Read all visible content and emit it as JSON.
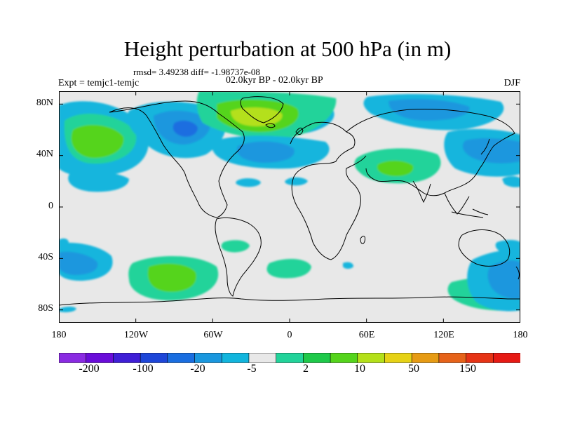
{
  "title": "Height perturbation at 500 hPa (in m)",
  "stats_line": "rmsd= 3.49238 diff= -1.98737e-08",
  "experiment_label": "Expt = temjc1-temjc",
  "period_label": "02.0kyr BP - 02.0kyr BP",
  "season_label": "DJF",
  "map": {
    "projection": "cylindrical-equidistant",
    "lon_range": [
      -180,
      180
    ],
    "lat_range": [
      -90,
      90
    ],
    "lat_tick_labels": [
      "80N",
      "40N",
      "0",
      "40S",
      "80S"
    ],
    "lat_tick_values": [
      80,
      40,
      0,
      -40,
      -80
    ],
    "lon_tick_labels": [
      "180",
      "120W",
      "60W",
      "0",
      "60E",
      "120E",
      "180"
    ],
    "lon_tick_values": [
      -180,
      -120,
      -60,
      0,
      60,
      120,
      180
    ],
    "background_color": "#e8e8e8"
  },
  "colorbar": {
    "labels": [
      "-200",
      "-100",
      "-20",
      "-5",
      "2",
      "10",
      "50",
      "150"
    ],
    "colors": [
      "#8a2be2",
      "#6a0dd9",
      "#3f1fd6",
      "#1e46d8",
      "#1a6ee0",
      "#1a97de",
      "#12b5dd",
      "#e8e8e8",
      "#22d39a",
      "#1fc94a",
      "#55d41c",
      "#b4e01a",
      "#e6d216",
      "#e69b14",
      "#e6631a",
      "#e63416",
      "#e61a14"
    ]
  },
  "contour_levels": {
    "neg_weak": "#12b5dd",
    "neg_mid": "#1a97de",
    "neg_strong": "#1a6ee0",
    "pos_weak": "#22d39a",
    "pos_mid": "#55d41c",
    "pos_strong": "#b4e01a"
  }
}
